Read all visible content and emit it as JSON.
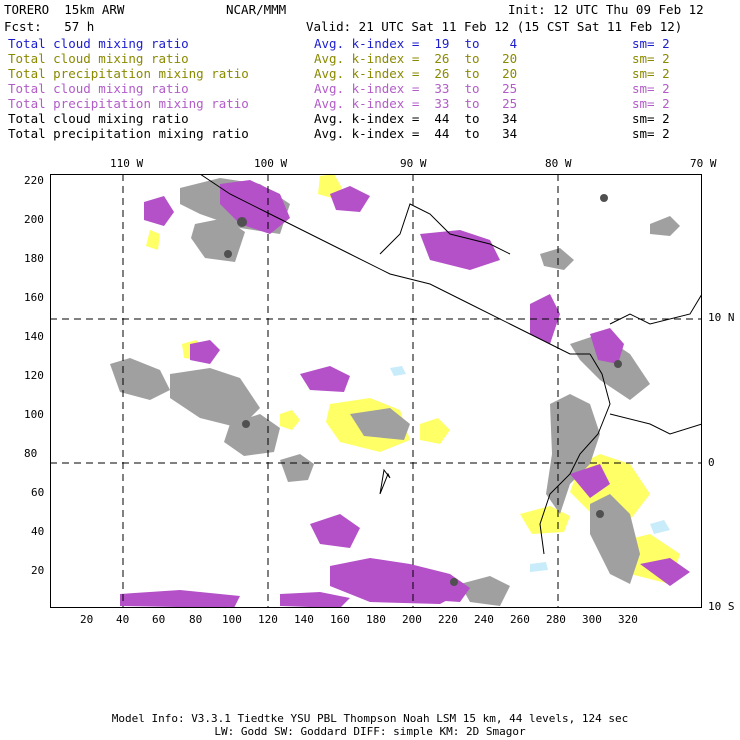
{
  "header": {
    "model": "TORERO  15km ARW",
    "org": "NCAR/MMM",
    "init": "Init: 12 UTC Thu 09 Feb 12",
    "fcst": "Fcst:   57 h",
    "valid": "Valid: 21 UTC Sat 11 Feb 12 (15 CST Sat 11 Feb 12)"
  },
  "legend": [
    {
      "field": "Total cloud mixing ratio",
      "kindex": "Avg. k-index =  19  to    4",
      "sm": "sm= 2",
      "color": "#1c1ccf"
    },
    {
      "field": "Total cloud mixing ratio",
      "kindex": "Avg. k-index =  26  to   20",
      "sm": "sm= 2",
      "color": "#8a8a00"
    },
    {
      "field": "Total precipitation mixing ratio",
      "kindex": "Avg. k-index =  26  to   20",
      "sm": "sm= 2",
      "color": "#8a8a00"
    },
    {
      "field": "Total cloud mixing ratio",
      "kindex": "Avg. k-index =  33  to   25",
      "sm": "sm= 2",
      "color": "#b25cc8"
    },
    {
      "field": "Total precipitation mixing ratio",
      "kindex": "Avg. k-index =  33  to   25",
      "sm": "sm= 2",
      "color": "#b25cc8"
    },
    {
      "field": "Total cloud mixing ratio",
      "kindex": "Avg. k-index =  44  to   34",
      "sm": "sm= 2",
      "color": "#000000"
    },
    {
      "field": "Total precipitation mixing ratio",
      "kindex": "Avg. k-index =  44  to   34",
      "sm": "sm= 2",
      "color": "#000000"
    }
  ],
  "map": {
    "lon_labels": [
      "110 W",
      "100 W",
      "90 W",
      "80 W",
      "70 W"
    ],
    "lat_labels": [
      "10 N",
      "0",
      "10 S"
    ],
    "grid_x_labels": [
      "20",
      "40",
      "60",
      "80",
      "100",
      "120",
      "140",
      "160",
      "180",
      "200",
      "220",
      "240",
      "260",
      "280",
      "300",
      "320"
    ],
    "grid_y_labels": [
      "220",
      "200",
      "180",
      "160",
      "140",
      "120",
      "100",
      "80",
      "60",
      "40",
      "20"
    ],
    "colors": {
      "gray": "#a0a0a0",
      "dark": "#505050",
      "yellow": "#ffff66",
      "purple": "#b450c8",
      "cyan": "#c8ecfa",
      "coast": "#000000"
    }
  },
  "footer": {
    "line1": "Model Info: V3.3.1   Tiedtke YSU PBL  Thompson    Noah LSM  15 km,   44 levels,   124 sec",
    "line2": "LW: Godd SW: Goddard DIFF: simple KM: 2D Smagor"
  }
}
